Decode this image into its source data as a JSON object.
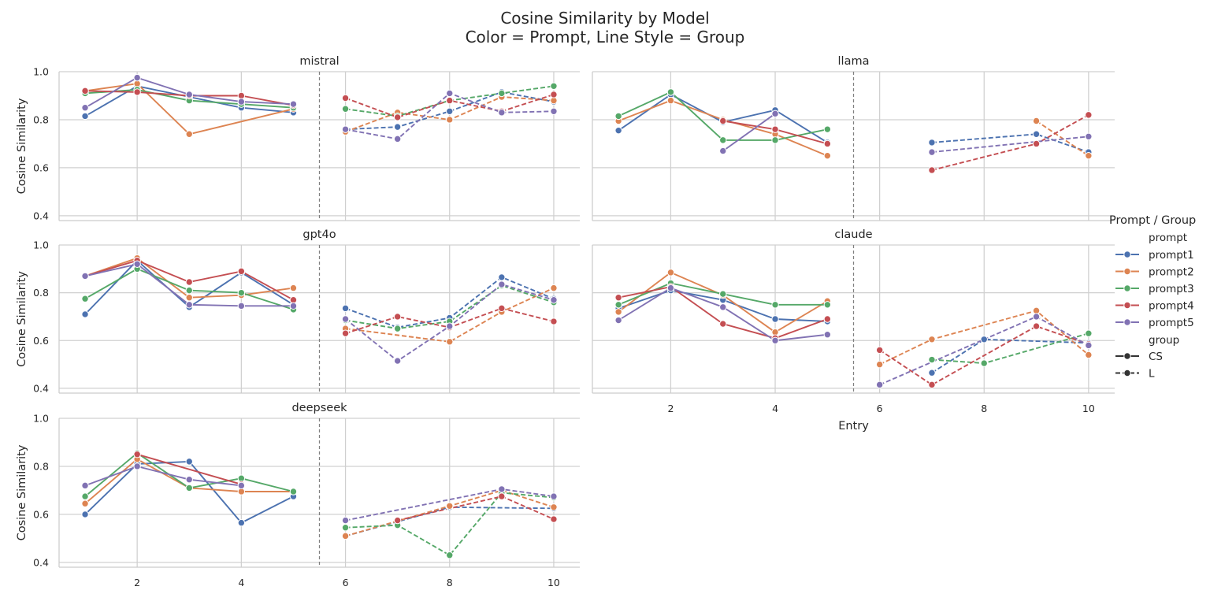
{
  "chart_data": {
    "type": "line",
    "title": "Cosine Similarity by Model",
    "subtitle": "Color = Prompt, Line Style = Group",
    "xlabel": "Entry",
    "ylabel": "Cosine Similarity",
    "xlim": [
      0.5,
      10.5
    ],
    "ylim": [
      0.38,
      1.0
    ],
    "xticks": [
      2,
      4,
      6,
      8,
      10
    ],
    "yticks": [
      0.4,
      0.6,
      0.8,
      1.0
    ],
    "ytick_labels": [
      "0.4",
      "0.6",
      "0.8",
      "1.0"
    ],
    "divider_x": 5.5,
    "grid": true,
    "legend": {
      "title": "Prompt / Group",
      "placement": "right",
      "prompt_header": "prompt",
      "group_header": "group",
      "prompts": [
        "prompt1",
        "prompt2",
        "prompt3",
        "prompt4",
        "prompt5"
      ],
      "groups": [
        "CS",
        "L"
      ]
    },
    "colors": {
      "prompt1": "#4c72b0",
      "prompt2": "#dd8452",
      "prompt3": "#55a868",
      "prompt4": "#c44e52",
      "prompt5": "#8172b3"
    },
    "panels": [
      {
        "model": "mistral",
        "series": [
          {
            "prompt": "prompt1",
            "group": "CS",
            "x": [
              1,
              2,
              3,
              4,
              5
            ],
            "y": [
              0.815,
              0.94,
              0.895,
              0.85,
              0.83
            ]
          },
          {
            "prompt": "prompt2",
            "group": "CS",
            "x": [
              1,
              2,
              3,
              5
            ],
            "y": [
              0.92,
              0.95,
              0.74,
              0.845
            ]
          },
          {
            "prompt": "prompt3",
            "group": "CS",
            "x": [
              1,
              2,
              3,
              4,
              5
            ],
            "y": [
              0.91,
              0.925,
              0.88,
              0.865,
              0.85
            ]
          },
          {
            "prompt": "prompt4",
            "group": "CS",
            "x": [
              1,
              2,
              3,
              4,
              5
            ],
            "y": [
              0.92,
              0.915,
              0.9,
              0.9,
              0.86
            ]
          },
          {
            "prompt": "prompt5",
            "group": "CS",
            "x": [
              1,
              2,
              3,
              4,
              5
            ],
            "y": [
              0.85,
              0.975,
              0.905,
              0.875,
              0.865
            ]
          },
          {
            "prompt": "prompt1",
            "group": "L",
            "x": [
              6,
              7,
              8,
              9,
              10
            ],
            "y": [
              0.76,
              0.77,
              0.835,
              0.915,
              0.875
            ]
          },
          {
            "prompt": "prompt2",
            "group": "L",
            "x": [
              6,
              7,
              8,
              9,
              10
            ],
            "y": [
              0.75,
              0.83,
              0.8,
              0.895,
              0.88
            ]
          },
          {
            "prompt": "prompt3",
            "group": "L",
            "x": [
              6,
              7,
              8,
              9,
              10
            ],
            "y": [
              0.845,
              0.815,
              0.88,
              0.91,
              0.94
            ]
          },
          {
            "prompt": "prompt4",
            "group": "L",
            "x": [
              6,
              7,
              8,
              9,
              10
            ],
            "y": [
              0.89,
              0.81,
              0.88,
              0.835,
              0.905
            ]
          },
          {
            "prompt": "prompt5",
            "group": "L",
            "x": [
              6,
              7,
              8,
              9,
              10
            ],
            "y": [
              0.76,
              0.72,
              0.91,
              0.83,
              0.835
            ]
          }
        ]
      },
      {
        "model": "llama",
        "series": [
          {
            "prompt": "prompt1",
            "group": "CS",
            "x": [
              1,
              2,
              3,
              4,
              5
            ],
            "y": [
              0.755,
              0.905,
              0.79,
              0.84,
              0.705
            ]
          },
          {
            "prompt": "prompt2",
            "group": "CS",
            "x": [
              1,
              2,
              3,
              4,
              5
            ],
            "y": [
              0.795,
              0.88,
              0.8,
              0.74,
              0.65
            ]
          },
          {
            "prompt": "prompt3",
            "group": "CS",
            "x": [
              1,
              2,
              3,
              4,
              5
            ],
            "y": [
              0.815,
              0.915,
              0.715,
              0.715,
              0.76
            ]
          },
          {
            "prompt": "prompt4",
            "group": "CS",
            "x": [
              3,
              4,
              5
            ],
            "y": [
              0.795,
              0.76,
              0.7
            ]
          },
          {
            "prompt": "prompt5",
            "group": "CS",
            "x": [
              3,
              4
            ],
            "y": [
              0.67,
              0.825
            ]
          },
          {
            "prompt": "prompt1",
            "group": "L",
            "x": [
              7,
              9,
              10
            ],
            "y": [
              0.705,
              0.74,
              0.665
            ]
          },
          {
            "prompt": "prompt2",
            "group": "L",
            "x": [
              9,
              10
            ],
            "y": [
              0.795,
              0.65
            ]
          },
          {
            "prompt": "prompt4",
            "group": "L",
            "x": [
              7,
              9,
              10
            ],
            "y": [
              0.59,
              0.7,
              0.82
            ]
          },
          {
            "prompt": "prompt5",
            "group": "L",
            "x": [
              7,
              10
            ],
            "y": [
              0.665,
              0.73
            ]
          }
        ]
      },
      {
        "model": "gpt4o",
        "series": [
          {
            "prompt": "prompt1",
            "group": "CS",
            "x": [
              1,
              2,
              3,
              4,
              5
            ],
            "y": [
              0.71,
              0.935,
              0.74,
              0.885,
              0.75
            ]
          },
          {
            "prompt": "prompt2",
            "group": "CS",
            "x": [
              1,
              2,
              3,
              4,
              5
            ],
            "y": [
              0.87,
              0.945,
              0.78,
              0.79,
              0.82
            ]
          },
          {
            "prompt": "prompt3",
            "group": "CS",
            "x": [
              1,
              2,
              3,
              4,
              5
            ],
            "y": [
              0.775,
              0.9,
              0.81,
              0.8,
              0.73
            ]
          },
          {
            "prompt": "prompt4",
            "group": "CS",
            "x": [
              1,
              2,
              3,
              4,
              5
            ],
            "y": [
              0.87,
              0.935,
              0.845,
              0.89,
              0.77
            ]
          },
          {
            "prompt": "prompt5",
            "group": "CS",
            "x": [
              1,
              2,
              3,
              4,
              5
            ],
            "y": [
              0.87,
              0.92,
              0.75,
              0.745,
              0.745
            ]
          },
          {
            "prompt": "prompt1",
            "group": "L",
            "x": [
              6,
              7,
              8,
              9,
              10
            ],
            "y": [
              0.735,
              0.655,
              0.695,
              0.865,
              0.775
            ]
          },
          {
            "prompt": "prompt2",
            "group": "L",
            "x": [
              6,
              8,
              9,
              10
            ],
            "y": [
              0.65,
              0.595,
              0.72,
              0.82
            ]
          },
          {
            "prompt": "prompt3",
            "group": "L",
            "x": [
              6,
              7,
              8,
              9,
              10
            ],
            "y": [
              0.685,
              0.65,
              0.68,
              0.83,
              0.76
            ]
          },
          {
            "prompt": "prompt4",
            "group": "L",
            "x": [
              6,
              7,
              8,
              9,
              10
            ],
            "y": [
              0.63,
              0.7,
              0.655,
              0.735,
              0.68
            ]
          },
          {
            "prompt": "prompt5",
            "group": "L",
            "x": [
              6,
              7,
              8,
              9,
              10
            ],
            "y": [
              0.69,
              0.515,
              0.66,
              0.835,
              0.77
            ]
          }
        ]
      },
      {
        "model": "claude",
        "series": [
          {
            "prompt": "prompt1",
            "group": "CS",
            "x": [
              1,
              2,
              3,
              4,
              5
            ],
            "y": [
              0.735,
              0.81,
              0.77,
              0.69,
              0.68
            ]
          },
          {
            "prompt": "prompt2",
            "group": "CS",
            "x": [
              1,
              2,
              3,
              4,
              5
            ],
            "y": [
              0.72,
              0.885,
              0.79,
              0.635,
              0.765
            ]
          },
          {
            "prompt": "prompt3",
            "group": "CS",
            "x": [
              1,
              2,
              3,
              4,
              5
            ],
            "y": [
              0.75,
              0.84,
              0.795,
              0.75,
              0.75
            ]
          },
          {
            "prompt": "prompt4",
            "group": "CS",
            "x": [
              1,
              2,
              3,
              4,
              5
            ],
            "y": [
              0.78,
              0.825,
              0.67,
              0.61,
              0.69
            ]
          },
          {
            "prompt": "prompt5",
            "group": "CS",
            "x": [
              1,
              2,
              3,
              4,
              5
            ],
            "y": [
              0.685,
              0.82,
              0.74,
              0.6,
              0.625
            ]
          },
          {
            "prompt": "prompt1",
            "group": "L",
            "x": [
              7,
              8,
              10
            ],
            "y": [
              0.465,
              0.605,
              0.59
            ]
          },
          {
            "prompt": "prompt2",
            "group": "L",
            "x": [
              6,
              7,
              9,
              10
            ],
            "y": [
              0.5,
              0.605,
              0.725,
              0.54
            ]
          },
          {
            "prompt": "prompt3",
            "group": "L",
            "x": [
              7,
              8,
              10
            ],
            "y": [
              0.52,
              0.505,
              0.63
            ]
          },
          {
            "prompt": "prompt4",
            "group": "L",
            "x": [
              6,
              7,
              9,
              10
            ],
            "y": [
              0.56,
              0.415,
              0.66,
              0.585
            ]
          },
          {
            "prompt": "prompt5",
            "group": "L",
            "x": [
              6,
              9,
              10
            ],
            "y": [
              0.415,
              0.7,
              0.58
            ]
          }
        ]
      },
      {
        "model": "deepseek",
        "series": [
          {
            "prompt": "prompt1",
            "group": "CS",
            "x": [
              1,
              2,
              3,
              4,
              5
            ],
            "y": [
              0.6,
              0.81,
              0.82,
              0.565,
              0.675
            ]
          },
          {
            "prompt": "prompt2",
            "group": "CS",
            "x": [
              1,
              2,
              3,
              4,
              5
            ],
            "y": [
              0.645,
              0.83,
              0.71,
              0.695,
              0.695
            ]
          },
          {
            "prompt": "prompt3",
            "group": "CS",
            "x": [
              1,
              2,
              3,
              4,
              5
            ],
            "y": [
              0.675,
              0.855,
              0.71,
              0.75,
              0.695
            ]
          },
          {
            "prompt": "prompt4",
            "group": "CS",
            "x": [
              2,
              4
            ],
            "y": [
              0.85,
              0.725
            ]
          },
          {
            "prompt": "prompt5",
            "group": "CS",
            "x": [
              1,
              2,
              3,
              4
            ],
            "y": [
              0.72,
              0.8,
              0.745,
              0.72
            ]
          },
          {
            "prompt": "prompt1",
            "group": "L",
            "x": [
              6,
              8,
              10
            ],
            "y": [
              0.51,
              0.63,
              0.625
            ]
          },
          {
            "prompt": "prompt2",
            "group": "L",
            "x": [
              6,
              8,
              9,
              10
            ],
            "y": [
              0.51,
              0.635,
              0.7,
              0.63
            ]
          },
          {
            "prompt": "prompt3",
            "group": "L",
            "x": [
              6,
              7,
              8,
              9,
              10
            ],
            "y": [
              0.545,
              0.555,
              0.43,
              0.69,
              0.67
            ]
          },
          {
            "prompt": "prompt4",
            "group": "L",
            "x": [
              7,
              9,
              10
            ],
            "y": [
              0.575,
              0.675,
              0.58
            ]
          },
          {
            "prompt": "prompt5",
            "group": "L",
            "x": [
              6,
              9,
              10
            ],
            "y": [
              0.575,
              0.705,
              0.675
            ]
          }
        ]
      }
    ]
  }
}
